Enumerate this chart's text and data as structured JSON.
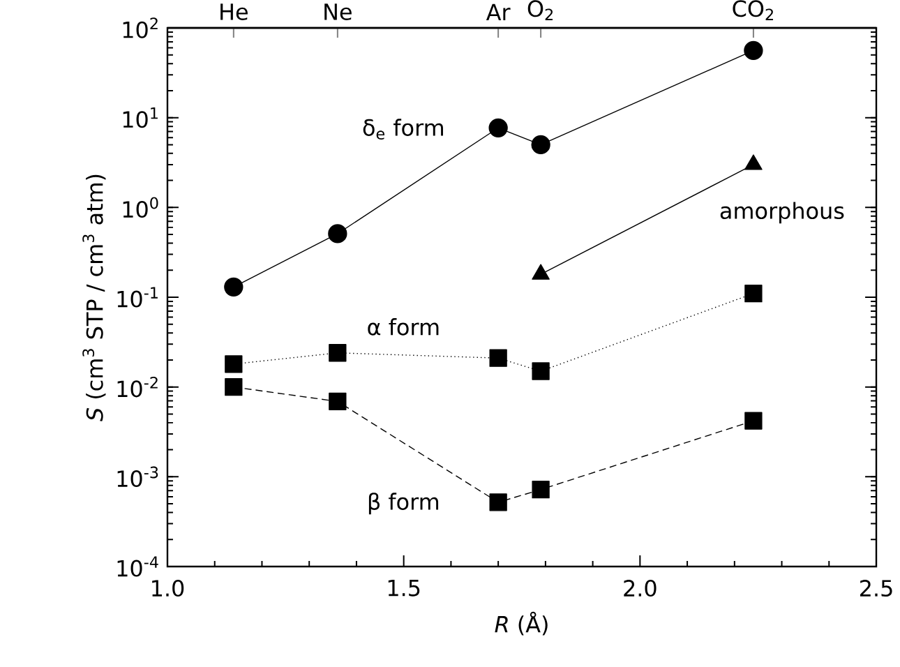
{
  "chart_data": {
    "type": "line",
    "xlabel": "*R* (Å)",
    "ylabel": "*S* (cm$^{3}$ STP / cm$^{3}$ atm)",
    "x": [
      1.14,
      1.36,
      1.7,
      1.79,
      2.24
    ],
    "series": [
      {
        "name": "δ$_{e}$ form",
        "color": "#000000",
        "marker": "circle",
        "line_style": "solid",
        "values": [
          0.13,
          0.51,
          7.7,
          5.0,
          56
        ]
      },
      {
        "name": "amorphous",
        "color": "#000000",
        "marker": "triangle",
        "line_style": "solid",
        "values": [
          null,
          null,
          null,
          0.18,
          3.0
        ]
      },
      {
        "name": "α form",
        "color": "#000000",
        "marker": "square",
        "line_style": "dotted",
        "values": [
          0.018,
          0.024,
          0.021,
          0.015,
          0.11
        ]
      },
      {
        "name": "β form",
        "color": "#000000",
        "marker": "square",
        "line_style": "dashed",
        "values": [
          0.01,
          0.0069,
          0.00052,
          0.00072,
          0.0042
        ]
      }
    ],
    "log": "y",
    "xlim": [
      1.0,
      2.5
    ],
    "xticks": [
      {
        "value": 1.0,
        "label": "1.0"
      },
      1.5,
      {
        "value": 2.0,
        "label": "2.0"
      },
      2.5
    ],
    "ylim": [
      0.0001,
      100
    ],
    "yticks": [
      {
        "value": 0.0001,
        "label": "10$^{-4}$"
      },
      {
        "value": 0.001,
        "label": "10$^{-3}$"
      },
      {
        "value": 0.01,
        "label": "10$^{-2}$"
      },
      {
        "value": 0.1,
        "label": "10$^{-1}$"
      },
      {
        "value": 1,
        "label": "10$^{0}$"
      },
      {
        "value": 10,
        "label": "10$^{1}$"
      },
      {
        "value": 100,
        "label": "10$^{2}$"
      }
    ],
    "x2lim": [
      1.0,
      2.5
    ],
    "x2ticks": [
      {
        "value": 1.14,
        "label": "He"
      },
      {
        "value": 1.36,
        "label": "Ne"
      },
      {
        "value": 1.7,
        "label": "Ar"
      },
      {
        "value": 1.79,
        "label": "O$_{2}$"
      },
      {
        "value": 2.24,
        "label": "CO$_{2}$"
      }
    ],
    "grid": false
  }
}
